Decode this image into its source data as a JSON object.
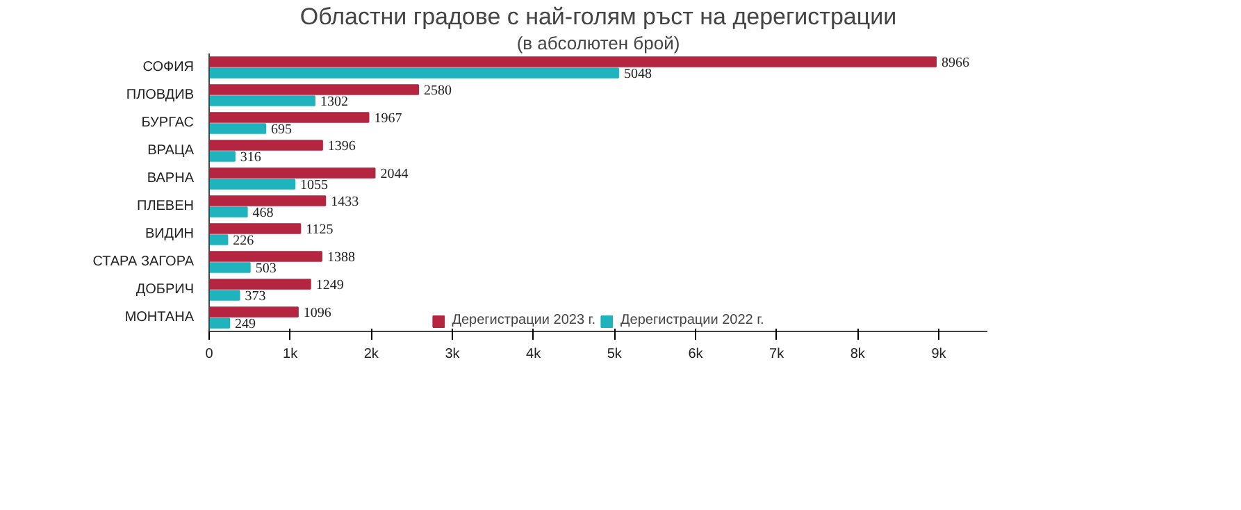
{
  "chart_data": {
    "type": "bar",
    "orientation": "horizontal",
    "title": "Областни градове с най-голям ръст на дерегистрации",
    "subtitle": "(в абсолютен брой)",
    "categories": [
      "СОФИЯ",
      "ПЛОВДИВ",
      "БУРГАС",
      "ВРАЦА",
      "ВАРНА",
      "ПЛЕВЕН",
      "ВИДИН",
      "СТАРА ЗАГОРА",
      "ДОБРИЧ",
      "МОНТАНА"
    ],
    "series": [
      {
        "name": "Дерегистрации 2023 г.",
        "color": "#b5253f",
        "values": [
          8966,
          2580,
          1967,
          1396,
          2044,
          1433,
          1125,
          1388,
          1249,
          1096
        ]
      },
      {
        "name": "Дерегистрации 2022 г.",
        "color": "#1fb3bd",
        "values": [
          5048,
          1302,
          695,
          316,
          1055,
          468,
          226,
          503,
          373,
          249
        ]
      }
    ],
    "xlim": [
      0,
      9600
    ],
    "xticks": [
      0,
      {
        "value": 1000,
        "label": "1k"
      },
      {
        "value": 2000,
        "label": "2k"
      },
      {
        "value": 3000,
        "label": "3k"
      },
      {
        "value": 4000,
        "label": "4k"
      },
      {
        "value": 5000,
        "label": "5k"
      },
      {
        "value": 6000,
        "label": "6k"
      },
      {
        "value": 7000,
        "label": "7k"
      },
      {
        "value": 8000,
        "label": "8k"
      },
      {
        "value": 9000,
        "label": "9k"
      }
    ],
    "data_labels": true,
    "grid": false,
    "legend": "bottom"
  }
}
